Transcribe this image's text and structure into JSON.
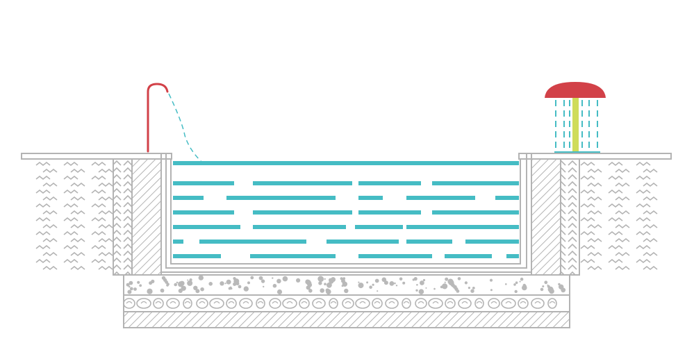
{
  "colors": {
    "outline": "#b3b3b3",
    "water": "#45bcc4",
    "accent_red": "#d24148",
    "fountain_column": "#cfdc5a",
    "gravel": "#b9b9b9",
    "background": "#ffffff"
  },
  "icons": {
    "spout": "curved-water-spout",
    "fountain": "mushroom-fountain",
    "soil": "zigzag-soil-hatching",
    "concrete": "diagonal-hatching",
    "gravel": "dotted-gravel-layer",
    "stones": "cobblestone-layer"
  }
}
